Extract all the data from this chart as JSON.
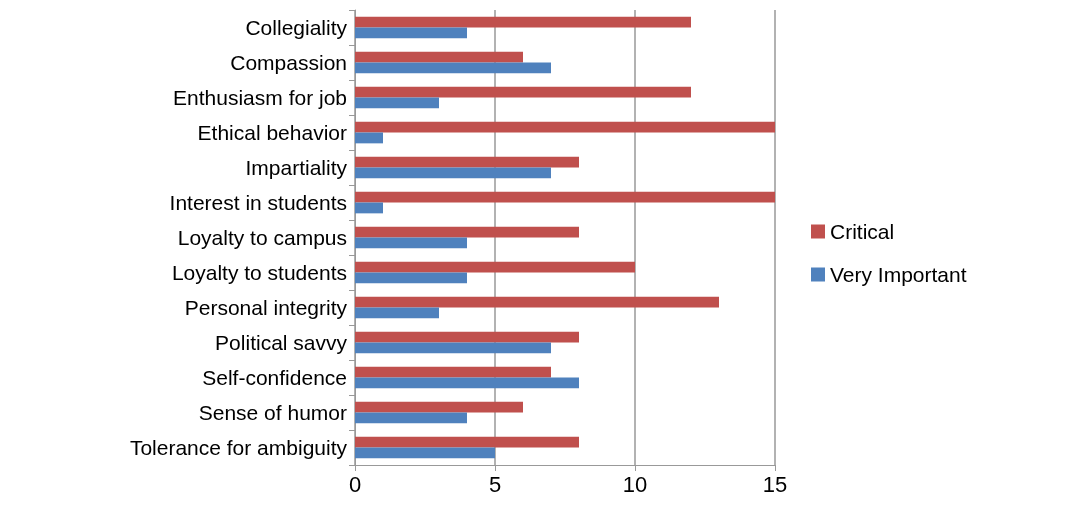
{
  "chart_data": {
    "type": "bar",
    "orientation": "horizontal",
    "categories": [
      "Collegiality",
      "Compassion",
      "Enthusiasm for job",
      "Ethical behavior",
      "Impartiality",
      "Interest in students",
      "Loyalty to campus",
      "Loyalty to students",
      "Personal integrity",
      "Political savvy",
      "Self-confidence",
      "Sense of humor",
      "Tolerance for ambiguity"
    ],
    "series": [
      {
        "name": "Critical",
        "color": "#c0504d",
        "values": [
          12,
          6,
          12,
          15,
          8,
          15,
          8,
          10,
          13,
          8,
          7,
          6,
          8
        ]
      },
      {
        "name": "Very Important",
        "color": "#4f81bd",
        "values": [
          4,
          7,
          3,
          1,
          7,
          1,
          4,
          4,
          3,
          7,
          8,
          4,
          5
        ]
      }
    ],
    "xlim": [
      0,
      15
    ],
    "xticks": [
      0,
      5,
      10,
      15
    ],
    "grid": "x",
    "legend": "right"
  }
}
